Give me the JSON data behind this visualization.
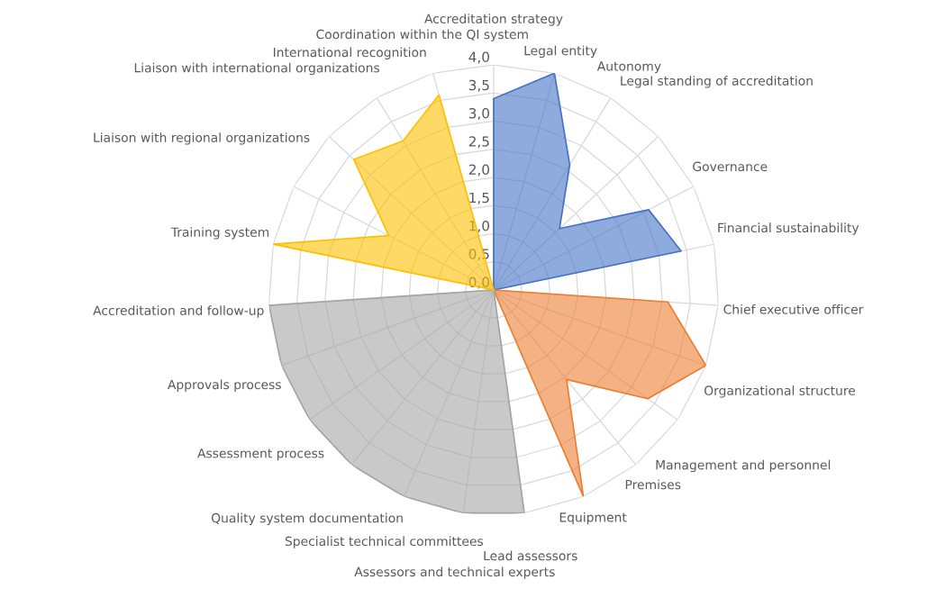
{
  "chart_data": {
    "type": "radar",
    "categories": [
      "Accreditation strategy",
      "Legal entity",
      "Autonomy",
      "Legal standing of accreditation",
      "Governance",
      "Financial sustainability",
      "Chief executive officer",
      "Organizational structure",
      "Management and personnel",
      "Premises",
      "Equipment",
      "Lead assessors",
      "Assessors and technical experts",
      "Specialist technical committees",
      "Quality system documentation",
      "Assessment process",
      "Approvals process",
      "Accreditation and follow-up",
      "Training system",
      "Liaison with regional organizations",
      "Liaison with international organizations",
      "International recognition",
      "Coordination within the QI system"
    ],
    "series": [
      {
        "color": "#4472c4",
        "values": [
          3.4,
          4.0,
          2.6,
          1.6,
          3.1,
          3.4,
          0,
          0,
          0,
          0,
          0,
          0,
          0,
          0,
          0,
          0,
          0,
          0,
          0,
          0,
          0,
          0,
          0
        ]
      },
      {
        "color": "#ed7d31",
        "values": [
          0,
          0,
          0,
          0,
          0,
          0,
          3.1,
          4.0,
          3.35,
          2.05,
          4.0,
          0,
          0,
          0,
          0,
          0,
          0,
          0,
          0,
          0,
          0,
          0,
          0
        ]
      },
      {
        "color": "#a5a5a5",
        "values": [
          0,
          0,
          0,
          0,
          0,
          0,
          0,
          0,
          0,
          0,
          0,
          4.0,
          4.0,
          4.0,
          4.0,
          4.0,
          4.0,
          4.0,
          0,
          0,
          0,
          0,
          0
        ]
      },
      {
        "color": "#ffc000",
        "values": [
          0,
          0,
          0,
          0,
          0,
          0,
          0,
          0,
          0,
          0,
          0,
          0,
          0,
          0,
          0,
          0,
          0,
          0,
          4.0,
          2.1,
          3.4,
          3.1,
          3.6
        ]
      }
    ],
    "ylim": [
      0,
      4.0
    ],
    "yticks": [
      {
        "value": 0,
        "label": "0,0"
      },
      {
        "value": 0.5,
        "label": "0,5"
      },
      {
        "value": 1.0,
        "label": "1,0"
      },
      {
        "value": 1.5,
        "label": "1,5"
      },
      {
        "value": 2.0,
        "label": "2,0"
      },
      {
        "value": 2.5,
        "label": "2,5"
      },
      {
        "value": 3.0,
        "label": "3,0"
      },
      {
        "value": 3.5,
        "label": "3,5"
      },
      {
        "value": 4.0,
        "label": "4,0"
      }
    ],
    "grid": true,
    "legend": false
  }
}
